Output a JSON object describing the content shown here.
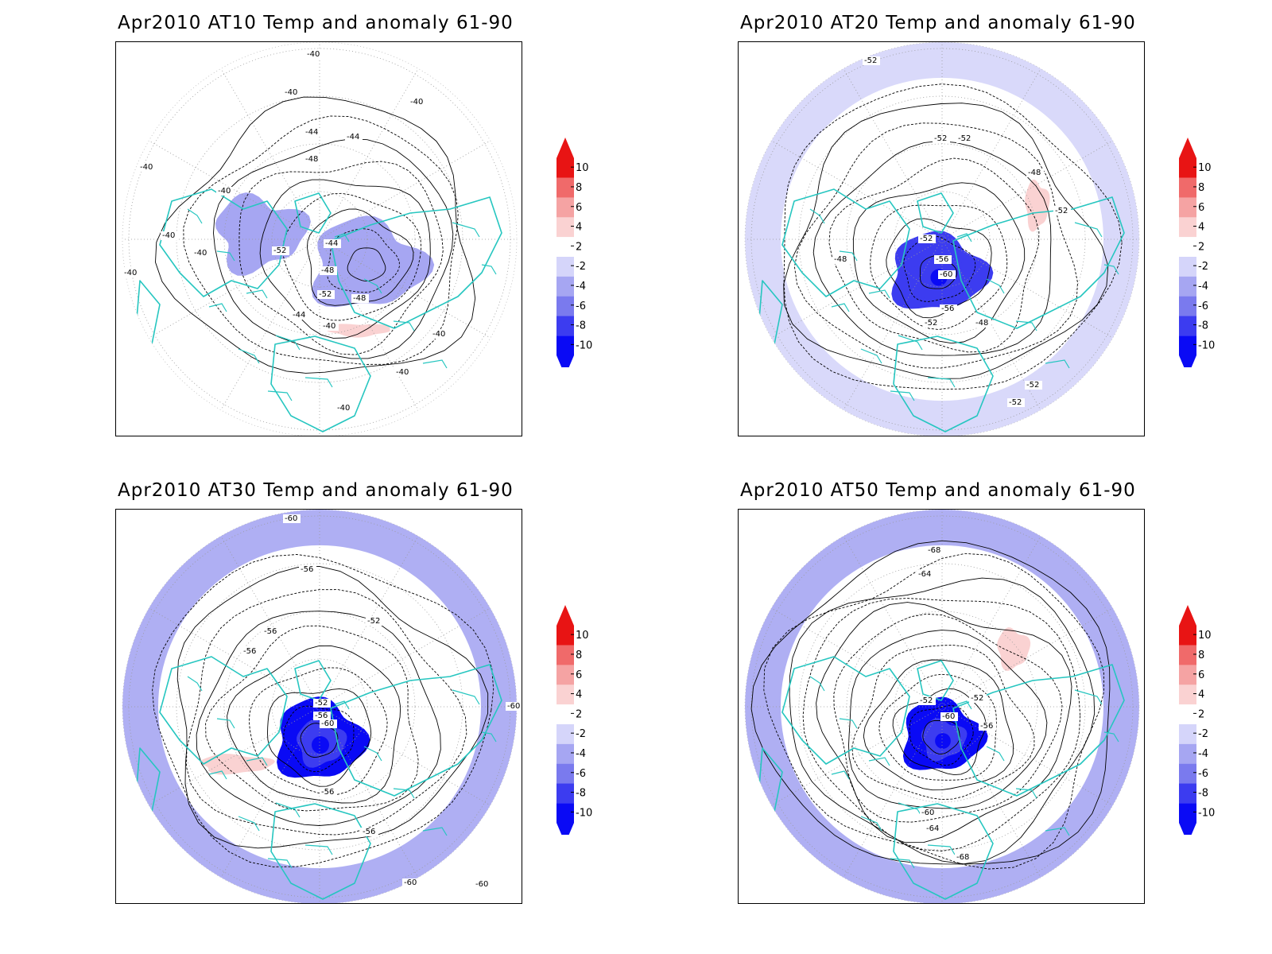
{
  "panels": [
    {
      "title": "Apr2010 AT10 Temp and anomaly 61-90",
      "contour_labels": [
        "-40",
        "-40",
        "-40",
        "-44",
        "-44",
        "-48",
        "-40",
        "-40",
        "-40",
        "-40",
        "-52",
        "-44",
        "-48",
        "-52",
        "-48",
        "-44",
        "-40",
        "-40",
        "-40",
        "-40",
        "-40"
      ],
      "anomaly_regions": [
        {
          "level": -4,
          "desc": "Siberian cold core"
        },
        {
          "level": -4,
          "desc": "Canadian cold region"
        },
        {
          "level": 2,
          "desc": "weak warm patch"
        }
      ]
    },
    {
      "title": "Apr2010 AT20 Temp and anomaly 61-90",
      "contour_labels": [
        "-52",
        "-52",
        "-52",
        "-48",
        "-52",
        "-52",
        "-56",
        "-60",
        "-56",
        "-52",
        "-48",
        "-48",
        "-52",
        "-52"
      ],
      "anomaly_regions": [
        {
          "level": -8,
          "desc": "polar vortex cold core"
        },
        {
          "level": -2,
          "desc": "subtropical cool band"
        },
        {
          "level": 2,
          "desc": "weak warm patches"
        }
      ]
    },
    {
      "title": "Apr2010 AT30 Temp and anomaly 61-90",
      "contour_labels": [
        "-60",
        "-56",
        "-56",
        "-56",
        "-52",
        "-52",
        "-56",
        "-60",
        "-56",
        "-56",
        "-60",
        "-60",
        "-60"
      ],
      "anomaly_regions": [
        {
          "level": -10,
          "desc": "polar vortex cold core"
        },
        {
          "level": -4,
          "desc": "subtropical cool band"
        },
        {
          "level": 2,
          "desc": "weak warm patches"
        }
      ]
    },
    {
      "title": "Apr2010 AT50 Temp and anomaly 61-90",
      "contour_labels": [
        "-68",
        "-64",
        "-52",
        "-52",
        "-60",
        "-56",
        "-60",
        "-64",
        "-68"
      ],
      "anomaly_regions": [
        {
          "level": -10,
          "desc": "polar vortex cold core"
        },
        {
          "level": -4,
          "desc": "subtropical cool band"
        },
        {
          "level": 2,
          "desc": "weak warm patches"
        }
      ]
    }
  ],
  "colorbar": {
    "ticks": [
      "10",
      "8",
      "6",
      "4",
      "2",
      "-2",
      "-4",
      "-6",
      "-8",
      "-10"
    ],
    "colors": [
      "#e81414",
      "#f06a6a",
      "#f5a3a3",
      "#fad2d2",
      "#ffffff",
      "#d5d5fa",
      "#a6a6f2",
      "#7a7aee",
      "#3c3cf0",
      "#0a0af5"
    ],
    "top_arrow_color": "#e81414",
    "bottom_arrow_color": "#0a0af5"
  },
  "style": {
    "coastline_color": "#26c6c0",
    "contour_color": "#000000"
  }
}
